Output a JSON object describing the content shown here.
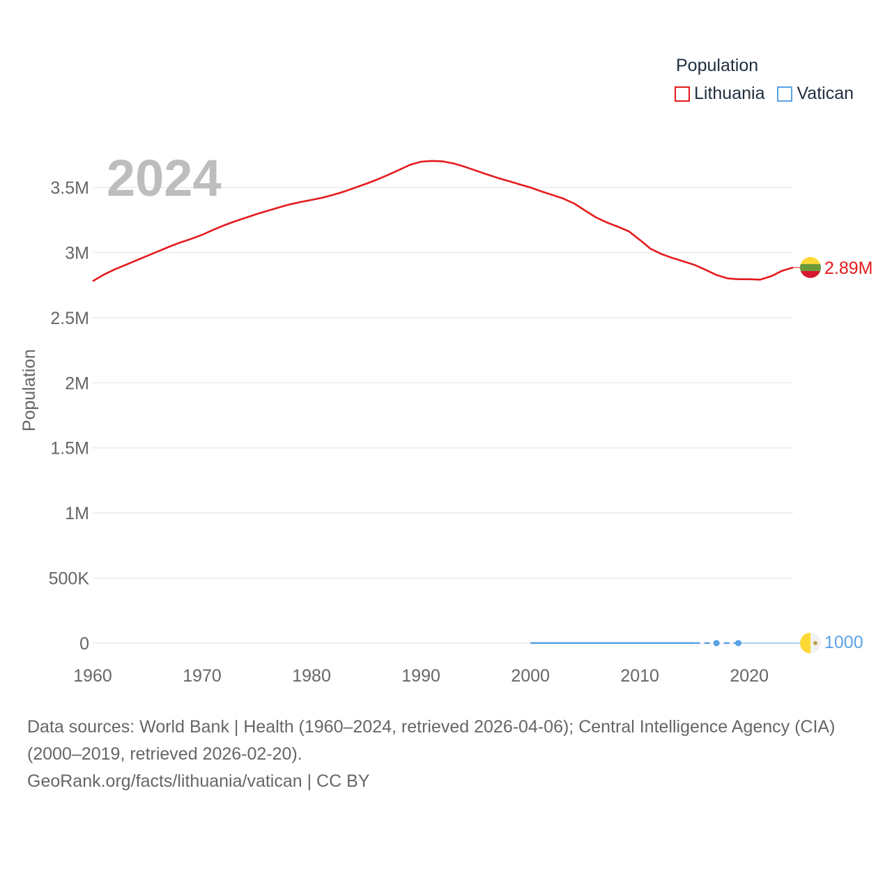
{
  "legend": {
    "title": "Population",
    "items": [
      {
        "label": "Lithuania",
        "color": "#e41a1c"
      },
      {
        "label": "Vatican",
        "color": "#5aa2e6"
      }
    ]
  },
  "year_watermark": "2024",
  "footer": {
    "sources": "Data sources: World Bank | Health (1960–2024, retrieved 2026-04-06); Central Intelligence Agency (CIA) (2000–2019, retrieved 2026-02-20).",
    "attribution": "GeoRank.org/facts/lithuania/vatican | CC BY"
  },
  "chart_data": {
    "type": "line",
    "title": "",
    "xlabel": "",
    "ylabel": "Population",
    "xlim": [
      1960,
      2024
    ],
    "ylim": [
      0,
      3750000
    ],
    "x_ticks": [
      1960,
      1970,
      1980,
      1990,
      2000,
      2010,
      2020
    ],
    "y_ticks": [
      0,
      500000,
      1000000,
      1500000,
      2000000,
      2500000,
      3000000,
      3500000
    ],
    "y_tick_labels": [
      "0",
      "500K",
      "1M",
      "1.5M",
      "2M",
      "2.5M",
      "3M",
      "3.5M"
    ],
    "grid": true,
    "series": [
      {
        "name": "Lithuania",
        "color": "#e41a1c",
        "end_label": "2.89M",
        "x": [
          1960,
          1961,
          1962,
          1963,
          1964,
          1965,
          1966,
          1967,
          1968,
          1969,
          1970,
          1971,
          1972,
          1973,
          1974,
          1975,
          1976,
          1977,
          1978,
          1979,
          1980,
          1981,
          1982,
          1983,
          1984,
          1985,
          1986,
          1987,
          1988,
          1989,
          1990,
          1991,
          1992,
          1993,
          1994,
          1995,
          1996,
          1997,
          1998,
          1999,
          2000,
          2001,
          2002,
          2003,
          2004,
          2005,
          2006,
          2007,
          2008,
          2009,
          2010,
          2011,
          2012,
          2013,
          2014,
          2015,
          2016,
          2017,
          2018,
          2019,
          2020,
          2021,
          2022,
          2023,
          2024
        ],
        "values": [
          2780000,
          2830000,
          2870000,
          2905000,
          2940000,
          2975000,
          3010000,
          3045000,
          3077000,
          3105000,
          3136000,
          3174000,
          3209000,
          3240000,
          3268000,
          3296000,
          3321000,
          3346000,
          3370000,
          3388000,
          3404000,
          3422000,
          3444000,
          3469000,
          3499000,
          3529000,
          3561000,
          3597000,
          3635000,
          3674000,
          3698000,
          3704000,
          3700000,
          3684000,
          3659000,
          3630000,
          3601000,
          3574000,
          3549000,
          3524000,
          3500000,
          3470000,
          3443000,
          3415000,
          3377000,
          3323000,
          3270000,
          3231000,
          3198000,
          3163000,
          3097000,
          3028000,
          2988000,
          2958000,
          2932000,
          2905000,
          2868000,
          2828000,
          2802000,
          2795000,
          2795000,
          2792000,
          2818000,
          2860000,
          2885000
        ]
      },
      {
        "name": "Vatican",
        "color": "#5aa2e6",
        "end_label": "1000",
        "x": [
          2000,
          2005,
          2010,
          2015,
          2017,
          2019,
          2024
        ],
        "values": [
          870,
          890,
          830,
          840,
          1000,
          1000,
          1000
        ]
      }
    ]
  }
}
